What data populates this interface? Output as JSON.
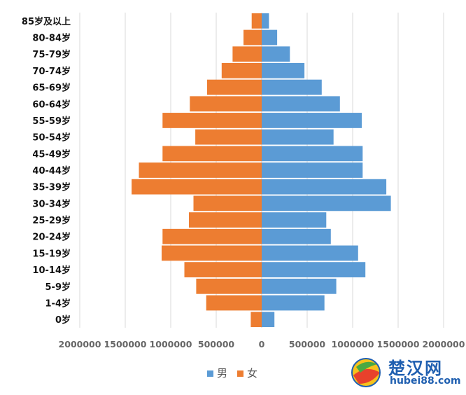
{
  "chart_data": {
    "type": "bar",
    "orientation": "horizontal",
    "subtype": "population-pyramid",
    "categories": [
      "85岁及以上",
      "80-84岁",
      "75-79岁",
      "70-74岁",
      "65-69岁",
      "60-64岁",
      "55-59岁",
      "50-54岁",
      "45-49岁",
      "40-44岁",
      "35-39岁",
      "30-34岁",
      "25-29岁",
      "20-24岁",
      "15-19岁",
      "10-14岁",
      "5-9岁",
      "1-4岁",
      "0岁"
    ],
    "series": [
      {
        "name": "男",
        "color": "#5b9bd5",
        "values": [
          80000,
          170000,
          310000,
          470000,
          660000,
          860000,
          1100000,
          790000,
          1110000,
          1110000,
          1370000,
          1420000,
          710000,
          760000,
          1060000,
          1140000,
          820000,
          690000,
          140000
        ]
      },
      {
        "name": "女",
        "color": "#ed7d31",
        "values": [
          110000,
          200000,
          320000,
          440000,
          600000,
          790000,
          1090000,
          730000,
          1090000,
          1350000,
          1430000,
          750000,
          800000,
          1090000,
          1100000,
          850000,
          720000,
          610000,
          120000
        ]
      }
    ],
    "xlim": [
      -2000000,
      2000000
    ],
    "x_ticks": [
      {
        "value": -2000000,
        "label": "2000000"
      },
      {
        "value": -1500000,
        "label": "1500000"
      },
      {
        "value": -1000000,
        "label": "1000000"
      },
      {
        "value": -500000,
        "label": "500000"
      },
      {
        "value": 0,
        "label": "0"
      },
      {
        "value": 500000,
        "label": "500000"
      },
      {
        "value": 1000000,
        "label": "1000000"
      },
      {
        "value": 1500000,
        "label": "1500000"
      },
      {
        "value": 2000000,
        "label": "2000000"
      }
    ],
    "grid": true,
    "legend_position": "bottom"
  },
  "watermark": {
    "text": "楚汉网",
    "domain": "hubei88.com"
  }
}
